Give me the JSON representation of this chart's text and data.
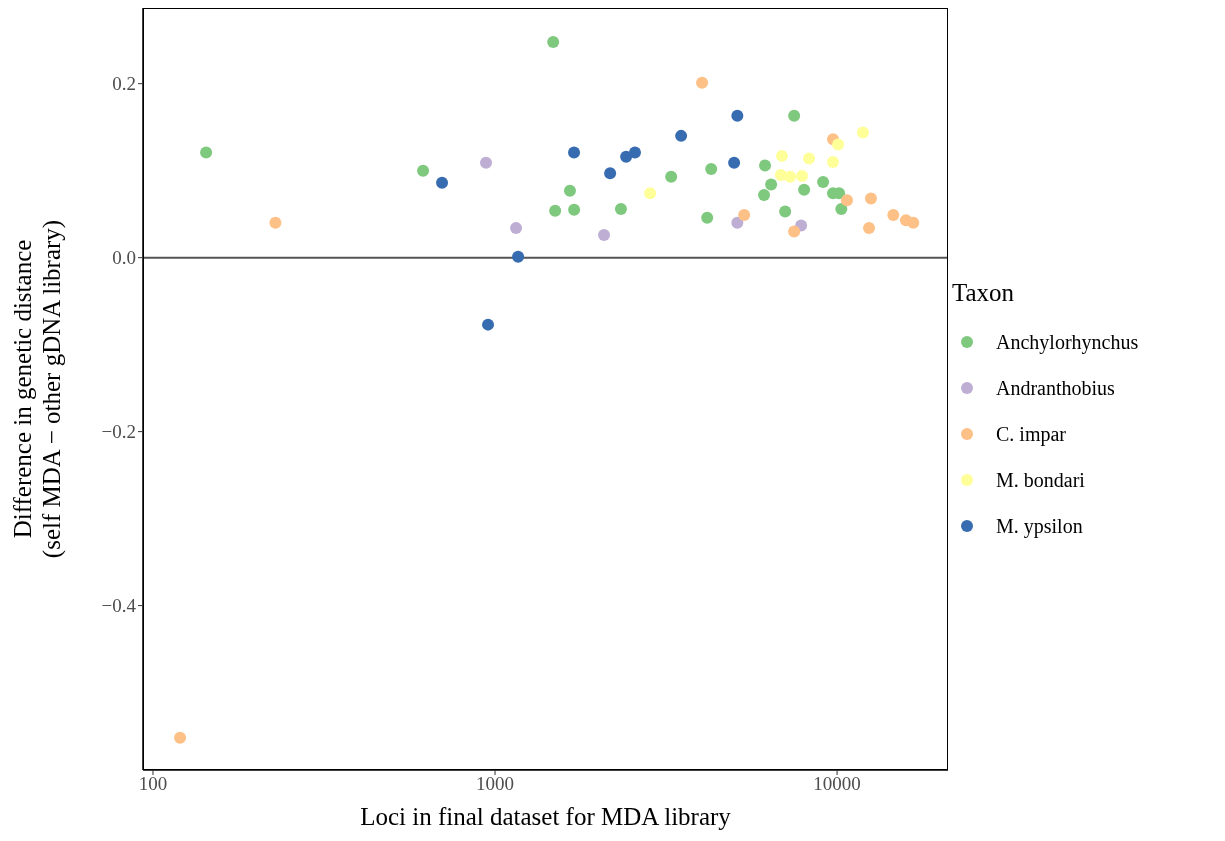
{
  "chart_data": {
    "type": "scatter",
    "xlabel": "Loci in final dataset for MDA library",
    "ylabel": "Difference in genetic distance\n(self MDA − other gDNA library)",
    "legend_title": "Taxon",
    "legend": "right",
    "log": "x",
    "grid": false,
    "marker": "circle",
    "xlim": [
      93.5,
      21100
    ],
    "xticks": [
      100,
      1000,
      10000
    ],
    "ylim": [
      -0.589,
      0.287
    ],
    "yticks": [
      {
        "value": -0.4,
        "label": "−0.4"
      },
      {
        "value": -0.2,
        "label": "−0.2"
      },
      {
        "value": 0,
        "label": "0.0"
      },
      0.2
    ],
    "ref_lines": [
      {
        "axis": "y",
        "value": 0,
        "color": "#555555",
        "line_style": "solid"
      }
    ],
    "series": [
      {
        "name": "Anchylorhynchus",
        "color": "#7fc97f",
        "x": [
          143,
          616,
          1479,
          1499,
          1656,
          1703,
          2334,
          3273,
          4171,
          4285,
          6157,
          6116,
          6415,
          7050,
          7490,
          8010,
          9100,
          9730,
          10140,
          10290
        ],
        "values": [
          0.121,
          0.1,
          0.248,
          0.054,
          0.077,
          0.055,
          0.056,
          0.093,
          0.046,
          0.102,
          0.106,
          0.072,
          0.084,
          0.053,
          0.163,
          0.078,
          0.087,
          0.074,
          0.074,
          0.056
        ]
      },
      {
        "name": "Andranthobius",
        "color": "#beaed4",
        "x": [
          941,
          1152,
          2083,
          5110,
          7850
        ],
        "values": [
          0.109,
          0.034,
          0.026,
          0.04,
          0.037
        ]
      },
      {
        "name": "C. impar",
        "color": "#fdc086",
        "x": [
          120,
          228,
          4030,
          5350,
          7490,
          9730,
          10690,
          12560,
          12400,
          14600,
          15900,
          16700
        ],
        "values": [
          -0.552,
          0.04,
          0.201,
          0.049,
          0.03,
          0.136,
          0.066,
          0.068,
          0.034,
          0.049,
          0.043,
          0.04
        ]
      },
      {
        "name": "M. bondari",
        "color": "#ffff99",
        "x": [
          2840,
          6900,
          6850,
          7290,
          7900,
          8280,
          9730,
          10070,
          11900
        ],
        "values": [
          0.074,
          0.117,
          0.095,
          0.093,
          0.094,
          0.114,
          0.11,
          0.13,
          0.144
        ]
      },
      {
        "name": "M. ypsilon",
        "color": "#386cb0",
        "x": [
          700,
          954,
          1168,
          1702,
          2170,
          2417,
          2565,
          3500,
          5000,
          5110
        ],
        "values": [
          0.086,
          -0.077,
          0.001,
          0.121,
          0.097,
          0.116,
          0.121,
          0.14,
          0.109,
          0.163
        ]
      }
    ]
  }
}
